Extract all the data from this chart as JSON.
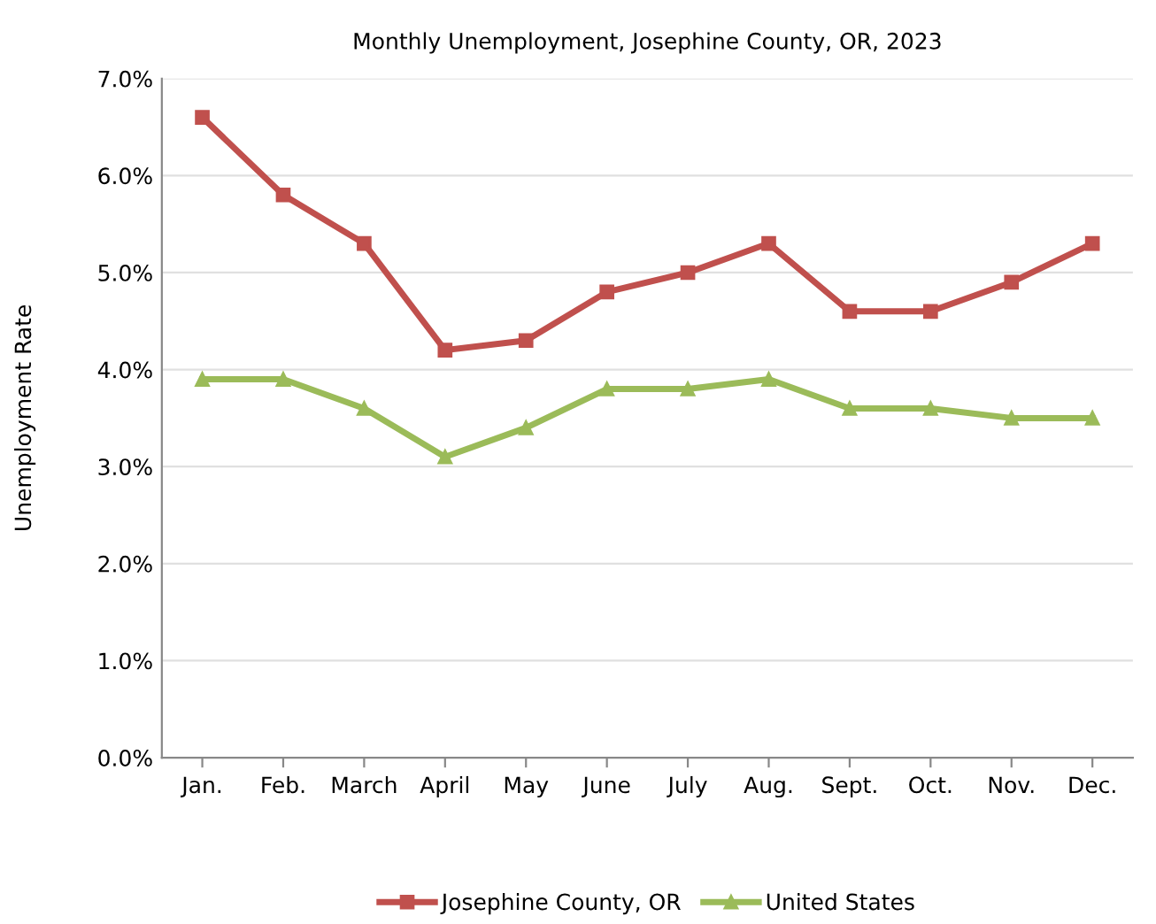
{
  "chart_data": {
    "type": "line",
    "title": "Monthly Unemployment, Josephine County, OR, 2023",
    "ylabel": "Unemployment Rate",
    "categories": [
      "Jan.",
      "Feb.",
      "March",
      "April",
      "May",
      "June",
      "July",
      "Aug.",
      "Sept.",
      "Oct.",
      "Nov.",
      "Dec."
    ],
    "series": [
      {
        "name": "Josephine County, OR",
        "color": "#c0504d",
        "marker": "square",
        "values": [
          6.6,
          5.8,
          5.3,
          4.2,
          4.3,
          4.8,
          5.0,
          5.3,
          4.6,
          4.6,
          4.9,
          5.3
        ]
      },
      {
        "name": "United States",
        "color": "#9bbb59",
        "marker": "triangle",
        "values": [
          3.9,
          3.9,
          3.6,
          3.1,
          3.4,
          3.8,
          3.8,
          3.9,
          3.6,
          3.6,
          3.5,
          3.5
        ]
      }
    ],
    "ylim": [
      0,
      7
    ],
    "yticks": [
      {
        "value": 0,
        "label": "0.0%"
      },
      {
        "value": 1,
        "label": "1.0%"
      },
      {
        "value": 2,
        "label": "2.0%"
      },
      {
        "value": 3,
        "label": "3.0%"
      },
      {
        "value": 4,
        "label": "4.0%"
      },
      {
        "value": 5,
        "label": "5.0%"
      },
      {
        "value": 6,
        "label": "6.0%"
      },
      {
        "value": 7,
        "label": "7.0%"
      }
    ],
    "grid": "y",
    "legend": "bottom",
    "line_style": "solid"
  }
}
